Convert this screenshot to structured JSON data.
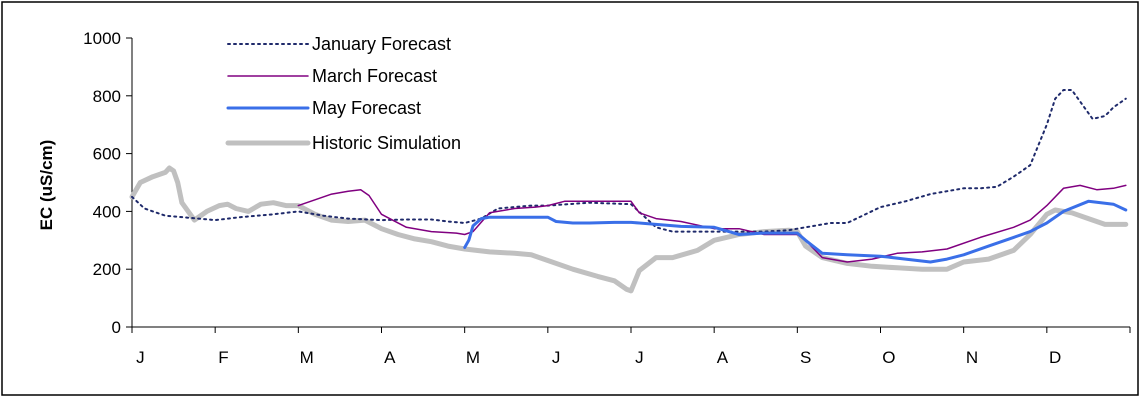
{
  "chart_data": {
    "type": "line",
    "title": "",
    "xlabel": "",
    "ylabel": "EC (uS/cm)",
    "ylim": [
      0,
      1000
    ],
    "yticks": [
      "0",
      "200",
      "400",
      "600",
      "800",
      "1000"
    ],
    "categories": [
      "J",
      "F",
      "M",
      "A",
      "M",
      "J",
      "J",
      "A",
      "S",
      "O",
      "N",
      "D"
    ],
    "xlim": [
      0,
      12
    ],
    "grid": false,
    "legend_position": "top-left",
    "series": [
      {
        "name": "January Forecast",
        "color": "#1f2a6b",
        "style": "dotted",
        "x": [
          0,
          0.15,
          0.4,
          0.8,
          1.0,
          1.3,
          1.7,
          2.0,
          2.3,
          2.6,
          3.0,
          3.3,
          3.6,
          3.8,
          4.0,
          4.2,
          4.4,
          4.8,
          5.0,
          5.5,
          6.0,
          6.3,
          6.5,
          7.0,
          7.3,
          7.6,
          7.9,
          8.0,
          8.2,
          8.4,
          8.6,
          9.0,
          9.3,
          9.6,
          9.8,
          10.0,
          10.2,
          10.4,
          10.6,
          10.8,
          10.9,
          11.0,
          11.1,
          11.2,
          11.3,
          11.45,
          11.55,
          11.7,
          11.8,
          11.95
        ],
        "values": [
          450,
          410,
          385,
          375,
          370,
          380,
          390,
          400,
          385,
          375,
          370,
          372,
          372,
          365,
          360,
          375,
          410,
          420,
          420,
          430,
          425,
          345,
          330,
          330,
          330,
          330,
          335,
          340,
          350,
          360,
          360,
          415,
          435,
          460,
          470,
          480,
          480,
          485,
          520,
          560,
          630,
          700,
          790,
          820,
          820,
          760,
          720,
          730,
          760,
          790
        ]
      },
      {
        "name": "March Forecast",
        "color": "#800080",
        "style": "solid",
        "x": [
          2.0,
          2.2,
          2.4,
          2.6,
          2.75,
          2.85,
          3.0,
          3.3,
          3.6,
          3.9,
          4.0,
          4.1,
          4.3,
          4.6,
          4.85,
          5.0,
          5.2,
          5.5,
          6.0,
          6.1,
          6.3,
          6.6,
          7.0,
          7.3,
          7.6,
          7.9,
          8.0,
          8.1,
          8.3,
          8.6,
          8.9,
          9.2,
          9.5,
          9.8,
          10.2,
          10.6,
          10.8,
          11.0,
          11.2,
          11.4,
          11.6,
          11.8,
          11.95
        ],
        "values": [
          420,
          440,
          460,
          470,
          475,
          455,
          390,
          345,
          330,
          325,
          320,
          330,
          395,
          410,
          415,
          420,
          435,
          435,
          435,
          395,
          375,
          365,
          340,
          340,
          320,
          320,
          320,
          300,
          240,
          225,
          235,
          255,
          260,
          270,
          310,
          345,
          370,
          420,
          480,
          490,
          475,
          480,
          490
        ]
      },
      {
        "name": "May Forecast",
        "color": "#3a6fe8",
        "style": "solid",
        "x": [
          4.0,
          4.05,
          4.1,
          4.2,
          4.3,
          4.5,
          4.8,
          5.0,
          5.1,
          5.3,
          5.5,
          5.8,
          6.0,
          6.1,
          6.3,
          6.6,
          7.0,
          7.3,
          7.6,
          7.9,
          8.0,
          8.1,
          8.3,
          8.6,
          9.0,
          9.3,
          9.6,
          9.8,
          10.0,
          10.3,
          10.6,
          10.8,
          11.0,
          11.2,
          11.5,
          11.8,
          11.95
        ],
        "values": [
          275,
          300,
          350,
          375,
          380,
          380,
          380,
          380,
          365,
          360,
          360,
          362,
          362,
          360,
          355,
          348,
          345,
          320,
          325,
          325,
          325,
          300,
          255,
          250,
          245,
          235,
          225,
          235,
          250,
          280,
          310,
          330,
          360,
          400,
          435,
          425,
          405
        ]
      },
      {
        "name": "Historic Simulation",
        "color": "#c0c0c0",
        "style": "solid",
        "x": [
          0,
          0.1,
          0.25,
          0.4,
          0.45,
          0.5,
          0.55,
          0.6,
          0.75,
          0.9,
          1.05,
          1.15,
          1.25,
          1.4,
          1.55,
          1.7,
          1.85,
          2.0,
          2.2,
          2.4,
          2.6,
          2.8,
          3.0,
          3.2,
          3.4,
          3.6,
          3.8,
          4.0,
          4.3,
          4.6,
          4.8,
          5.0,
          5.3,
          5.6,
          5.8,
          5.95,
          6.0,
          6.1,
          6.3,
          6.5,
          6.8,
          7.0,
          7.3,
          7.6,
          7.9,
          8.0,
          8.1,
          8.3,
          8.6,
          8.9,
          9.2,
          9.5,
          9.8,
          10.0,
          10.3,
          10.6,
          10.8,
          11.0,
          11.1,
          11.3,
          11.5,
          11.7,
          11.95
        ],
        "values": [
          450,
          500,
          520,
          535,
          550,
          540,
          500,
          430,
          370,
          400,
          420,
          425,
          410,
          400,
          425,
          430,
          420,
          420,
          390,
          370,
          365,
          370,
          340,
          320,
          305,
          295,
          280,
          270,
          260,
          255,
          250,
          230,
          200,
          175,
          160,
          130,
          125,
          195,
          240,
          240,
          265,
          300,
          320,
          330,
          335,
          330,
          280,
          240,
          220,
          210,
          205,
          200,
          200,
          225,
          235,
          265,
          320,
          390,
          405,
          395,
          375,
          355,
          355
        ]
      }
    ]
  }
}
